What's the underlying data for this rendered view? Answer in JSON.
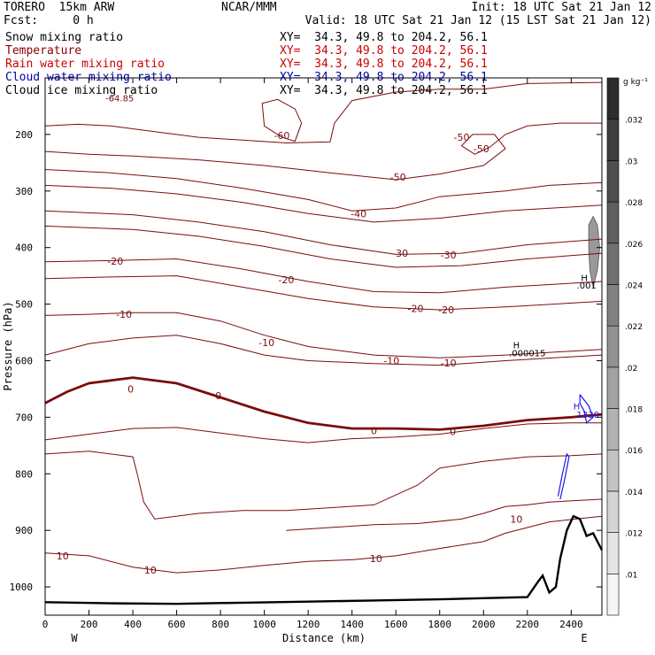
{
  "header": {
    "model": "TORERO  15km ARW",
    "center": "NCAR/MMM",
    "init": "Init: 18 UTC Sat 21 Jan 12",
    "fcst": "Fcst:     0 h",
    "valid": "Valid: 18 UTC Sat 21 Jan 12 (15 LST Sat 21 Jan 12)"
  },
  "fields": [
    {
      "name": "Snow mixing ratio",
      "xy": "XY=  34.3, 49.8 to 204.2, 56.1",
      "color": "#000000",
      "xy_color": "#000000"
    },
    {
      "name": "Temperature",
      "xy": "XY=  34.3, 49.8 to 204.2, 56.1",
      "color": "#8b0000",
      "xy_color": "#cc0000"
    },
    {
      "name": "Rain water mixing ratio",
      "xy": "XY=  34.3, 49.8 to 204.2, 56.1",
      "color": "#cc0000",
      "xy_color": "#cc0000"
    },
    {
      "name": "Cloud water mixing ratio",
      "xy": "XY=  34.3, 49.8 to 204.2, 56.1",
      "color": "#0000aa",
      "xy_color": "#0000aa"
    },
    {
      "name": "Cloud ice mixing ratio",
      "xy": "XY=  34.3, 49.8 to 204.2, 56.1",
      "color": "#000000",
      "xy_color": "#000000"
    }
  ],
  "chart_data": {
    "type": "cross-section contour",
    "xlabel": "Distance (km)",
    "ylabel": "Pressure (hPa)",
    "xlim": [
      0,
      2540
    ],
    "ylim": [
      1050,
      100
    ],
    "x_ticks": [
      0,
      200,
      400,
      600,
      800,
      1000,
      1200,
      1400,
      1600,
      1800,
      2000,
      2200,
      2400
    ],
    "y_ticks": [
      200,
      300,
      400,
      500,
      600,
      700,
      800,
      900,
      1000
    ],
    "x_end_labels": {
      "left": "W",
      "right": "E"
    },
    "colorbar": {
      "unit": "g kg⁻¹",
      "ticks": [
        ".01",
        ".012",
        ".014",
        ".016",
        ".018",
        ".02",
        ".022",
        ".024",
        ".026",
        ".028",
        ".03",
        ".032"
      ]
    },
    "annotations": [
      {
        "text": "-64.85",
        "x": 340,
        "p": 135
      },
      {
        "text": "H",
        "x": 2460,
        "p": 453
      },
      {
        "text": ".001",
        "x": 2470,
        "p": 466
      },
      {
        "text": "H",
        "x": 2150,
        "p": 572
      },
      {
        "text": ".000015",
        "x": 2200,
        "p": 586
      },
      {
        "text": "H",
        "x": 2425,
        "p": 680
      },
      {
        "text": ".1330",
        "x": 2470,
        "p": 695
      }
    ],
    "temperature_contours": [
      {
        "level": -60,
        "labels": [
          {
            "text": "-60",
            "x": 1080,
            "p": 202
          }
        ],
        "path": [
          [
            1000,
            185
          ],
          [
            1080,
            205
          ],
          [
            1140,
            212
          ],
          [
            1170,
            180
          ],
          [
            1140,
            155
          ],
          [
            1060,
            138
          ],
          [
            990,
            145
          ],
          [
            1000,
            185
          ]
        ]
      },
      {
        "level": -60,
        "labels": [],
        "path": [
          [
            0,
            185
          ],
          [
            150,
            182
          ],
          [
            300,
            185
          ],
          [
            500,
            195
          ],
          [
            700,
            205
          ],
          [
            900,
            210
          ],
          [
            1100,
            215
          ],
          [
            1300,
            213
          ],
          [
            1320,
            180
          ],
          [
            1400,
            140
          ],
          [
            1600,
            125
          ],
          [
            1800,
            120
          ],
          [
            2000,
            120
          ],
          [
            2200,
            110
          ],
          [
            2540,
            108
          ]
        ]
      },
      {
        "level": -50,
        "labels": [
          {
            "text": "-50",
            "x": 1900,
            "p": 205
          },
          {
            "text": "-50",
            "x": 1990,
            "p": 225
          },
          {
            "text": "-50",
            "x": 1610,
            "p": 275
          }
        ],
        "path": [
          [
            0,
            230
          ],
          [
            200,
            235
          ],
          [
            400,
            238
          ],
          [
            700,
            245
          ],
          [
            1000,
            255
          ],
          [
            1300,
            268
          ],
          [
            1600,
            280
          ],
          [
            1800,
            270
          ],
          [
            2000,
            255
          ],
          [
            2100,
            225
          ],
          [
            2050,
            200
          ],
          [
            1950,
            200
          ],
          [
            1900,
            220
          ],
          [
            1960,
            235
          ],
          [
            2030,
            222
          ],
          [
            2100,
            200
          ],
          [
            2200,
            185
          ],
          [
            2350,
            180
          ],
          [
            2540,
            180
          ]
        ]
      },
      {
        "level": -40,
        "labels": [
          {
            "text": "-40",
            "x": 1430,
            "p": 340
          }
        ],
        "path": [
          [
            0,
            262
          ],
          [
            300,
            268
          ],
          [
            600,
            278
          ],
          [
            900,
            295
          ],
          [
            1200,
            315
          ],
          [
            1400,
            335
          ],
          [
            1600,
            330
          ],
          [
            1800,
            310
          ],
          [
            2100,
            300
          ],
          [
            2300,
            290
          ],
          [
            2540,
            285
          ]
        ]
      },
      {
        "level": -40,
        "labels": [],
        "path": [
          [
            0,
            290
          ],
          [
            300,
            295
          ],
          [
            600,
            305
          ],
          [
            900,
            320
          ],
          [
            1200,
            340
          ],
          [
            1500,
            355
          ],
          [
            1800,
            348
          ],
          [
            2100,
            335
          ],
          [
            2540,
            325
          ]
        ]
      },
      {
        "level": -30,
        "labels": [
          {
            "text": "-30",
            "x": 1620,
            "p": 410
          },
          {
            "text": "-30",
            "x": 1840,
            "p": 413
          }
        ],
        "path": [
          [
            0,
            335
          ],
          [
            400,
            342
          ],
          [
            700,
            355
          ],
          [
            1000,
            372
          ],
          [
            1300,
            395
          ],
          [
            1600,
            412
          ],
          [
            1900,
            410
          ],
          [
            2200,
            395
          ],
          [
            2540,
            385
          ]
        ]
      },
      {
        "level": -30,
        "labels": [],
        "path": [
          [
            0,
            362
          ],
          [
            400,
            368
          ],
          [
            700,
            380
          ],
          [
            1000,
            398
          ],
          [
            1300,
            420
          ],
          [
            1600,
            435
          ],
          [
            1900,
            432
          ],
          [
            2200,
            420
          ],
          [
            2540,
            410
          ]
        ]
      },
      {
        "level": -20,
        "labels": [
          {
            "text": "-20",
            "x": 320,
            "p": 424
          },
          {
            "text": "-20",
            "x": 1100,
            "p": 457
          }
        ],
        "path": [
          [
            0,
            425
          ],
          [
            300,
            423
          ],
          [
            600,
            420
          ],
          [
            900,
            438
          ],
          [
            1200,
            460
          ],
          [
            1500,
            478
          ],
          [
            1800,
            480
          ],
          [
            2100,
            470
          ],
          [
            2540,
            460
          ]
        ]
      },
      {
        "level": -20,
        "labels": [
          {
            "text": "-20",
            "x": 1690,
            "p": 508
          },
          {
            "text": "-20",
            "x": 1830,
            "p": 510
          }
        ],
        "path": [
          [
            0,
            455
          ],
          [
            300,
            452
          ],
          [
            600,
            450
          ],
          [
            900,
            470
          ],
          [
            1200,
            490
          ],
          [
            1500,
            505
          ],
          [
            1800,
            510
          ],
          [
            2100,
            505
          ],
          [
            2540,
            495
          ]
        ]
      },
      {
        "level": -10,
        "labels": [
          {
            "text": "-10",
            "x": 360,
            "p": 518
          },
          {
            "text": "-10",
            "x": 1010,
            "p": 568
          }
        ],
        "path": [
          [
            0,
            520
          ],
          [
            200,
            518
          ],
          [
            400,
            515
          ],
          [
            600,
            515
          ],
          [
            800,
            530
          ],
          [
            1000,
            555
          ],
          [
            1200,
            575
          ],
          [
            1500,
            590
          ],
          [
            1800,
            595
          ],
          [
            2100,
            590
          ],
          [
            2540,
            580
          ]
        ]
      },
      {
        "level": -10,
        "labels": [
          {
            "text": "-10",
            "x": 1580,
            "p": 600
          },
          {
            "text": "-10",
            "x": 1840,
            "p": 604
          }
        ],
        "path": [
          [
            0,
            590
          ],
          [
            200,
            570
          ],
          [
            400,
            560
          ],
          [
            600,
            555
          ],
          [
            800,
            570
          ],
          [
            1000,
            590
          ],
          [
            1200,
            600
          ],
          [
            1500,
            605
          ],
          [
            1800,
            608
          ],
          [
            2100,
            600
          ],
          [
            2540,
            590
          ]
        ]
      },
      {
        "level": 0,
        "labels": [
          {
            "text": "0",
            "x": 390,
            "p": 650
          },
          {
            "text": "0",
            "x": 790,
            "p": 662
          },
          {
            "text": "0",
            "x": 1500,
            "p": 724
          },
          {
            "text": "0",
            "x": 1860,
            "p": 725
          }
        ],
        "bold": true,
        "path": [
          [
            0,
            675
          ],
          [
            100,
            655
          ],
          [
            200,
            640
          ],
          [
            300,
            635
          ],
          [
            400,
            630
          ],
          [
            600,
            640
          ],
          [
            800,
            665
          ],
          [
            1000,
            690
          ],
          [
            1200,
            710
          ],
          [
            1400,
            720
          ],
          [
            1600,
            720
          ],
          [
            1800,
            722
          ],
          [
            2000,
            715
          ],
          [
            2200,
            705
          ],
          [
            2400,
            700
          ],
          [
            2540,
            695
          ]
        ]
      },
      {
        "level": 10,
        "labels": [],
        "path": [
          [
            0,
            740
          ],
          [
            200,
            730
          ],
          [
            400,
            720
          ],
          [
            600,
            718
          ],
          [
            800,
            728
          ],
          [
            1000,
            738
          ],
          [
            1200,
            745
          ],
          [
            1400,
            738
          ],
          [
            1600,
            735
          ],
          [
            1800,
            730
          ],
          [
            2000,
            720
          ],
          [
            2200,
            712
          ],
          [
            2400,
            710
          ],
          [
            2540,
            710
          ]
        ]
      },
      {
        "level": 10,
        "labels": [],
        "path": [
          [
            0,
            765
          ],
          [
            200,
            760
          ],
          [
            400,
            770
          ],
          [
            420,
            800
          ],
          [
            450,
            850
          ],
          [
            500,
            880
          ],
          [
            700,
            870
          ],
          [
            900,
            865
          ],
          [
            1100,
            865
          ],
          [
            1300,
            860
          ],
          [
            1500,
            855
          ],
          [
            1700,
            820
          ],
          [
            1800,
            790
          ],
          [
            2000,
            778
          ],
          [
            2200,
            770
          ],
          [
            2400,
            768
          ],
          [
            2540,
            765
          ]
        ]
      },
      {
        "level": 10,
        "labels": [
          {
            "text": "10",
            "x": 2150,
            "p": 880
          }
        ],
        "path": [
          [
            1100,
            900
          ],
          [
            1300,
            895
          ],
          [
            1500,
            890
          ],
          [
            1700,
            888
          ],
          [
            1900,
            880
          ],
          [
            2000,
            870
          ],
          [
            2100,
            858
          ],
          [
            2200,
            855
          ],
          [
            2300,
            850
          ],
          [
            2540,
            845
          ]
        ]
      },
      {
        "level": 10,
        "labels": [
          {
            "text": "10",
            "x": 80,
            "p": 945
          },
          {
            "text": "10",
            "x": 480,
            "p": 970
          },
          {
            "text": "10",
            "x": 1510,
            "p": 950
          }
        ],
        "path": [
          [
            0,
            940
          ],
          [
            200,
            945
          ],
          [
            400,
            965
          ],
          [
            600,
            975
          ],
          [
            800,
            970
          ],
          [
            1000,
            962
          ],
          [
            1200,
            955
          ],
          [
            1400,
            952
          ],
          [
            1600,
            945
          ],
          [
            1800,
            932
          ],
          [
            2000,
            920
          ],
          [
            2100,
            905
          ],
          [
            2200,
            895
          ],
          [
            2300,
            885
          ],
          [
            2540,
            875
          ]
        ]
      }
    ],
    "terrain": {
      "path": [
        [
          0,
          1027
        ],
        [
          300,
          1029
        ],
        [
          600,
          1030
        ],
        [
          900,
          1028
        ],
        [
          1200,
          1026
        ],
        [
          1500,
          1024
        ],
        [
          1800,
          1022
        ],
        [
          2000,
          1020
        ],
        [
          2200,
          1018
        ],
        [
          2250,
          990
        ],
        [
          2270,
          980
        ],
        [
          2290,
          1000
        ],
        [
          2300,
          1010
        ],
        [
          2330,
          1000
        ],
        [
          2350,
          950
        ],
        [
          2380,
          900
        ],
        [
          2410,
          875
        ],
        [
          2440,
          880
        ],
        [
          2470,
          910
        ],
        [
          2500,
          905
        ],
        [
          2540,
          935
        ]
      ]
    },
    "cloud_water": {
      "path": [
        [
          2440,
          660
        ],
        [
          2480,
          680
        ],
        [
          2500,
          700
        ],
        [
          2470,
          710
        ],
        [
          2460,
          690
        ],
        [
          2440,
          675
        ],
        [
          2440,
          660
        ]
      ]
    },
    "cloud_ice": {
      "path": [
        [
          2480,
          360
        ],
        [
          2500,
          345
        ],
        [
          2520,
          360
        ],
        [
          2530,
          400
        ],
        [
          2520,
          440
        ],
        [
          2500,
          470
        ],
        [
          2485,
          440
        ],
        [
          2480,
          400
        ],
        [
          2480,
          360
        ]
      ]
    }
  }
}
